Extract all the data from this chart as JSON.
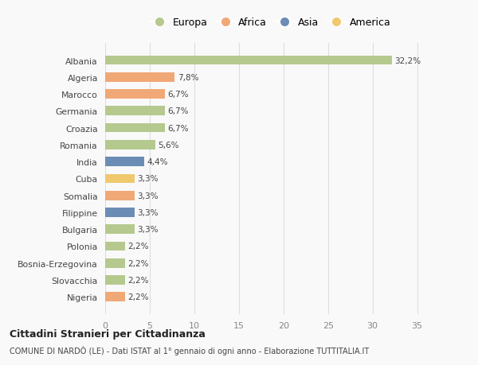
{
  "categories": [
    "Albania",
    "Algeria",
    "Marocco",
    "Germania",
    "Croazia",
    "Romania",
    "India",
    "Cuba",
    "Somalia",
    "Filippine",
    "Bulgaria",
    "Polonia",
    "Bosnia-Erzegovina",
    "Slovacchia",
    "Nigeria"
  ],
  "values": [
    32.2,
    7.8,
    6.7,
    6.7,
    6.7,
    5.6,
    4.4,
    3.3,
    3.3,
    3.3,
    3.3,
    2.2,
    2.2,
    2.2,
    2.2
  ],
  "labels": [
    "32,2%",
    "7,8%",
    "6,7%",
    "6,7%",
    "6,7%",
    "5,6%",
    "4,4%",
    "3,3%",
    "3,3%",
    "3,3%",
    "3,3%",
    "2,2%",
    "2,2%",
    "2,2%",
    "2,2%"
  ],
  "colors": [
    "#b5c98e",
    "#f0a877",
    "#f0a877",
    "#b5c98e",
    "#b5c98e",
    "#b5c98e",
    "#6b8db5",
    "#f0c96e",
    "#f0a877",
    "#6b8db5",
    "#b5c98e",
    "#b5c98e",
    "#b5c98e",
    "#b5c98e",
    "#f0a877"
  ],
  "legend_labels": [
    "Europa",
    "Africa",
    "Asia",
    "America"
  ],
  "legend_colors": [
    "#b5c98e",
    "#f0a877",
    "#6b8db5",
    "#f0c96e"
  ],
  "xlim": [
    0,
    37
  ],
  "xticks": [
    0,
    5,
    10,
    15,
    20,
    25,
    30,
    35
  ],
  "title_bold": "Cittadini Stranieri per Cittadinanza",
  "subtitle": "COMUNE DI NARDÒ (LE) - Dati ISTAT al 1° gennaio di ogni anno - Elaborazione TUTTITALIA.IT",
  "bg_color": "#f9f9f9",
  "grid_color": "#dddddd",
  "bar_height": 0.55
}
